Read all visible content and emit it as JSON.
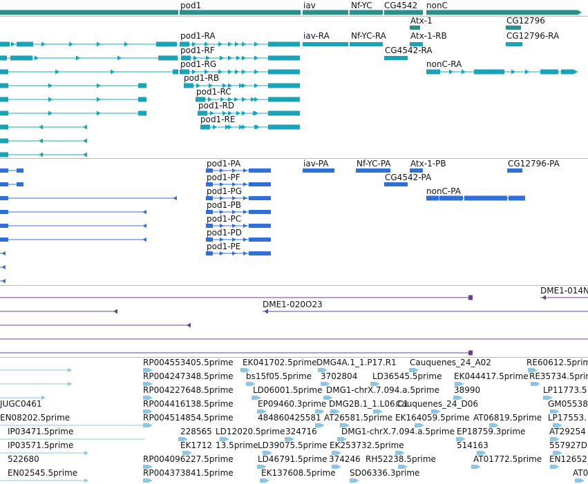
{
  "colors": {
    "gene": "#2b8f8a",
    "transcript_teal": "#1aa3b8",
    "transcript_blue": "#2f6fd6",
    "evidence_purple": "#6a3e9a",
    "est_lightblue": "#8ec4e6",
    "separator": "#b8b8b8",
    "label": "#111111"
  },
  "tracks": [
    {
      "id": "genes",
      "features": [
        {
          "label": "pod1",
          "color": "gene"
        },
        {
          "label": "iav",
          "color": "gene"
        },
        {
          "label": "Nf-YC",
          "color": "gene"
        },
        {
          "label": "CG4542",
          "color": "gene"
        },
        {
          "label": "nonC",
          "color": "gene"
        },
        {
          "label": "Atx-1",
          "color": "gene"
        },
        {
          "label": "CG12796",
          "color": "gene"
        }
      ]
    },
    {
      "id": "transcripts-r",
      "features": [
        {
          "label": "pod1-RA"
        },
        {
          "label": "pod1-RF"
        },
        {
          "label": "pod1-RG"
        },
        {
          "label": "pod1-RB"
        },
        {
          "label": "pod1-RC"
        },
        {
          "label": "pod1-RD"
        },
        {
          "label": "pod1-RE"
        },
        {
          "label": "iav-RA"
        },
        {
          "label": "Nf-YC-RA"
        },
        {
          "label": "Atx-1-RB"
        },
        {
          "label": "CG4542-RA"
        },
        {
          "label": "nonC-RA"
        },
        {
          "label": "CG12796-RA"
        }
      ]
    },
    {
      "id": "transcripts-p",
      "features": [
        {
          "label": "pod1-PA"
        },
        {
          "label": "pod1-PF"
        },
        {
          "label": "pod1-PG"
        },
        {
          "label": "pod1-PB"
        },
        {
          "label": "pod1-PC"
        },
        {
          "label": "pod1-PD"
        },
        {
          "label": "pod1-PE"
        },
        {
          "label": "iav-PA"
        },
        {
          "label": "Nf-YC-PA"
        },
        {
          "label": "Atx-1-PB"
        },
        {
          "label": "CG4542-PA"
        },
        {
          "label": "nonC-PA"
        },
        {
          "label": "CG12796-PA"
        }
      ]
    },
    {
      "id": "evidence",
      "features": [
        {
          "label": "DME1-014N"
        },
        {
          "label": "DME1-020O23"
        }
      ]
    },
    {
      "id": "est",
      "features": [
        {
          "label": "RP004553405.5prime"
        },
        {
          "label": "EK041702.5prime"
        },
        {
          "label": "DMG4A.1_1.P17.R1"
        },
        {
          "label": "Cauquenes_24_A02"
        },
        {
          "label": "RE60612.5prime"
        },
        {
          "label": "RP004247348.5prime"
        },
        {
          "label": "bs15f05.5prime"
        },
        {
          "label": "3702804"
        },
        {
          "label": "LD36545.5prime"
        },
        {
          "label": "EK044417.5prime"
        },
        {
          "label": "RE35734.5prime"
        },
        {
          "label": "RP004227648.5prime"
        },
        {
          "label": "LD06001.5prime"
        },
        {
          "label": "DMG1-chrX.7.094.a.5prime"
        },
        {
          "label": "38990"
        },
        {
          "label": "LP11773.5"
        },
        {
          "label": "JUGC0461"
        },
        {
          "label": "RP004416138.5prime"
        },
        {
          "label": "EP09460.3prime"
        },
        {
          "label": "DMG2B.1_1.L06.C1"
        },
        {
          "label": "Cauquenes_24_D06"
        },
        {
          "label": "GM05538"
        },
        {
          "label": "EN08202.5prime"
        },
        {
          "label": "RP004514854.5prime"
        },
        {
          "label": "484860425581"
        },
        {
          "label": "AT26581.5prime"
        },
        {
          "label": "EK164059.5prime"
        },
        {
          "label": "AT06819.5prime"
        },
        {
          "label": "LP17553."
        },
        {
          "label": "IP03471.5prime"
        },
        {
          "label": "228565"
        },
        {
          "label": "LD12020.5prime"
        },
        {
          "label": "324716"
        },
        {
          "label": "DMG1-chrX.7.094.a.5prime"
        },
        {
          "label": "EP18759.3prime"
        },
        {
          "label": "AT29254"
        },
        {
          "label": "IP03571.5prime"
        },
        {
          "label": "EK1712"
        },
        {
          "label": "13.5prime"
        },
        {
          "label": "LD39075.5prime"
        },
        {
          "label": "EK253732.5prime"
        },
        {
          "label": "514163"
        },
        {
          "label": "557927D"
        },
        {
          "label": "522680"
        },
        {
          "label": "RP004096227.5prime"
        },
        {
          "label": "LD46791.5prime"
        },
        {
          "label": "374246"
        },
        {
          "label": "RH52238.5prime"
        },
        {
          "label": "AT01772.5prime"
        },
        {
          "label": "EN12652"
        },
        {
          "label": "EN02545.5prime"
        },
        {
          "label": "RP004373841.5prime"
        },
        {
          "label": "EK137608.5prime"
        },
        {
          "label": "SD06336.3prime"
        },
        {
          "label": "AT0"
        }
      ]
    }
  ]
}
